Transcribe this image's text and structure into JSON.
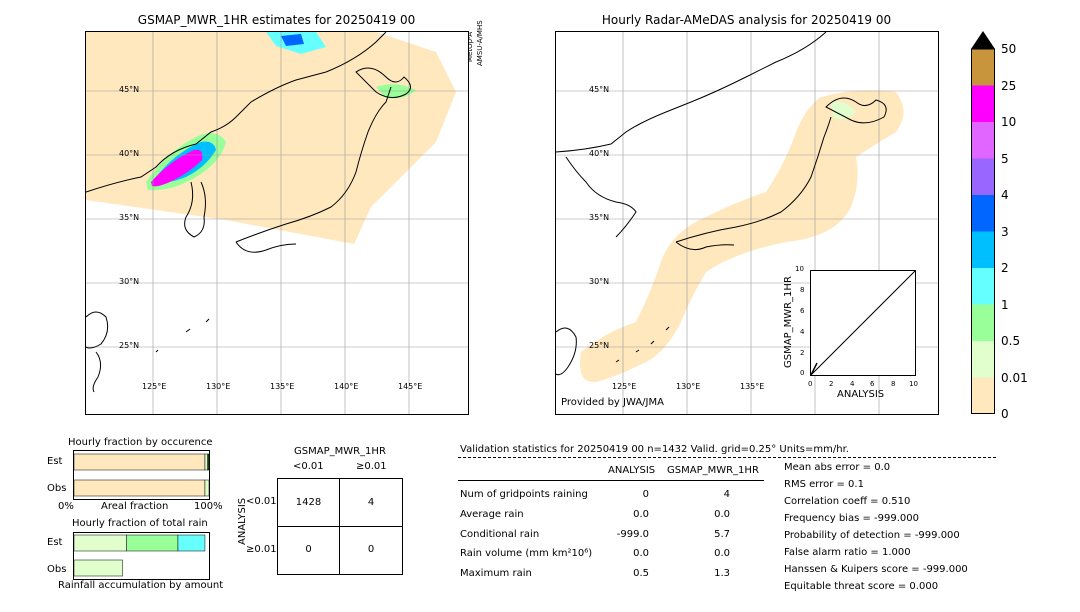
{
  "left_map": {
    "title": "GSMAP_MWR_1HR estimates for 20250419 00",
    "sensor_label_1": "MetOp-A",
    "sensor_label_2": "AMSU-A/MHS",
    "lat_labels": [
      "45°N",
      "40°N",
      "35°N",
      "30°N",
      "25°N"
    ],
    "lon_labels": [
      "125°E",
      "130°E",
      "135°E",
      "140°E",
      "145°E"
    ]
  },
  "right_map": {
    "title": "Hourly Radar-AMeDAS analysis for 20250419 00",
    "lat_labels": [
      "45°N",
      "40°N",
      "35°N",
      "30°N",
      "25°N"
    ],
    "lon_labels": [
      "125°E",
      "130°E",
      "135°E"
    ],
    "credit": "Provided by JWA/JMA",
    "inset_ylabel": "GSMAP_MWR_1HR",
    "inset_xlabel": "ANALYSIS",
    "inset_ticks": [
      "0",
      "2",
      "4",
      "6",
      "8",
      "10"
    ]
  },
  "colorbar": {
    "labels": [
      "50",
      "25",
      "10",
      "5",
      "4",
      "3",
      "2",
      "1",
      "0.5",
      "0.01",
      "0"
    ],
    "colors": [
      "#c8943c",
      "#ff00ff",
      "#e066ff",
      "#9966ff",
      "#0066ff",
      "#00bfff",
      "#66ffff",
      "#99ff99",
      "#e0ffcc",
      "#ffe8be"
    ],
    "over_color": "#000000"
  },
  "occurrence": {
    "title": "Hourly fraction by occurence",
    "row_est": "Est",
    "row_obs": "Obs",
    "axis_left": "0%",
    "axis_mid": "Areal fraction",
    "axis_right": "100%"
  },
  "total_rain": {
    "title": "Hourly fraction of total rain",
    "row_est": "Est",
    "row_obs": "Obs",
    "footer": "Rainfall accumulation by amount"
  },
  "contingency": {
    "title": "GSMAP_MWR_1HR",
    "col_lt": "<0.01",
    "col_ge": "≥0.01",
    "row_axis": "ANALYSIS",
    "row_lt": "<0.01",
    "row_ge": "≥0.01",
    "cells": [
      "1428",
      "4",
      "0",
      "0"
    ]
  },
  "validation": {
    "header": "Validation statistics for 20250419 00  n=1432 Valid. grid=0.25° Units=mm/hr.",
    "col_analysis": "ANALYSIS",
    "col_gsmap": "GSMAP_MWR_1HR",
    "rows": [
      {
        "label": "Num of gridpoints raining",
        "analysis": "0",
        "gsmap": "4"
      },
      {
        "label": "Average rain",
        "analysis": "0.0",
        "gsmap": "0.0"
      },
      {
        "label": "Conditional rain",
        "analysis": "-999.0",
        "gsmap": "5.7"
      },
      {
        "label": "Rain volume (mm km²10⁶)",
        "analysis": "0.0",
        "gsmap": "0.0"
      },
      {
        "label": "Maximum rain",
        "analysis": "0.5",
        "gsmap": "1.3"
      }
    ],
    "scores": [
      "Mean abs error =    0.0",
      "RMS error =    0.1",
      "Correlation coeff =  0.510",
      "Frequency bias = -999.000",
      "Probability of detection = -999.000",
      "False alarm ratio =  1.000",
      "Hanssen & Kuipers score = -999.000",
      "Equitable threat score =  0.000"
    ]
  },
  "chart_data": [
    {
      "type": "bar",
      "title": "Hourly fraction by occurence",
      "categories": [
        "Est",
        "Obs"
      ],
      "series": [
        {
          "name": "0",
          "values": [
            0.97,
            0.97
          ]
        },
        {
          "name": "0.01",
          "values": [
            0.02,
            0.03
          ]
        },
        {
          "name": "0.5",
          "values": [
            0.01,
            0.0
          ]
        }
      ],
      "xlabel": "Areal fraction",
      "xlim": [
        0,
        100
      ]
    },
    {
      "type": "bar",
      "title": "Hourly fraction of total rain",
      "categories": [
        "Est",
        "Obs"
      ],
      "series": [
        {
          "name": "0.01",
          "values": [
            0.39,
            0.36
          ]
        },
        {
          "name": "0.5",
          "values": [
            0.38,
            0.0
          ]
        },
        {
          "name": "1",
          "values": [
            0.2,
            0.0
          ]
        }
      ],
      "xlabel": "Rainfall accumulation by amount"
    },
    {
      "type": "table",
      "title": "GSMAP_MWR_1HR",
      "columns": [
        "<0.01",
        "≥0.01"
      ],
      "rows": [
        "<0.01",
        "≥0.01"
      ],
      "values": [
        [
          1428,
          4
        ],
        [
          0,
          0
        ]
      ]
    }
  ]
}
